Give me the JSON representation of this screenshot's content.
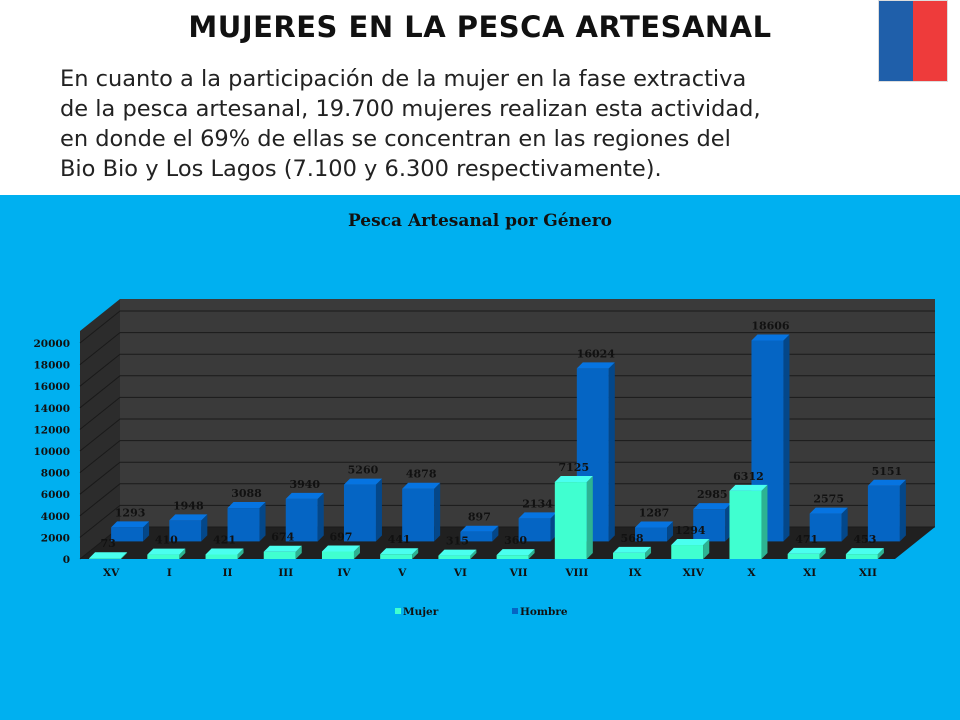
{
  "page": {
    "title": "MUJERES EN LA PESCA ARTESANAL",
    "lines": [
      "En cuanto a la participación de la mujer en la fase extractiva",
      "de la pesca artesanal, 19.700 mujeres realizan esta actividad,",
      "en donde el 69% de ellas se concentran en las regiones del",
      "Bio Bio y Los Lagos (7.100 y 6.300 respectivamente)."
    ]
  },
  "colors": {
    "panel": "#00b0f0",
    "mujer": "#40ffd0",
    "hombre": "#0565c4",
    "plot": "#3a3a3a"
  },
  "chart_data": {
    "type": "bar",
    "title": "Pesca Artesanal por Género",
    "categories": [
      "XV",
      "I",
      "II",
      "III",
      "IV",
      "V",
      "VI",
      "VII",
      "VIII",
      "IX",
      "XIV",
      "X",
      "XI",
      "XII"
    ],
    "series": [
      {
        "name": "Mujer",
        "values": [
          73,
          410,
          421,
          674,
          697,
          441,
          315,
          360,
          7125,
          568,
          1294,
          6312,
          471,
          453
        ]
      },
      {
        "name": "Hombre",
        "values": [
          1293,
          1948,
          3088,
          3940,
          5260,
          4878,
          897,
          2134,
          16024,
          1287,
          2985,
          18606,
          2575,
          5151
        ]
      }
    ],
    "yticks": [
      "0",
      "2000",
      "4000",
      "6000",
      "8000",
      "10000",
      "12000",
      "14000",
      "16000",
      "18000",
      "20000"
    ],
    "ylim": [
      0,
      20000
    ],
    "legend_position": "bottom",
    "grid": true
  }
}
